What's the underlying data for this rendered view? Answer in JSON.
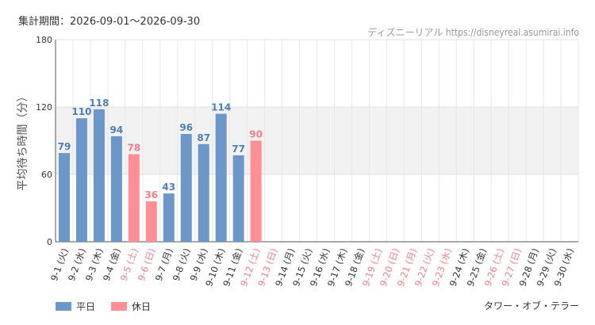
{
  "header": {
    "period": "集計期間：2026-09-01～2026-09-30",
    "source": "ディズニーリアル https://disneyreal.asumirai.info"
  },
  "footer": {
    "attraction": "タワー・オブ・テラー"
  },
  "colors": {
    "weekday": "#6b97c9",
    "holiday": "#ff8f94",
    "holiday_label": "#f27e85",
    "weekday_label": "#4d7fb8",
    "band": "#f2f2f2"
  },
  "chart_data": {
    "type": "bar",
    "ylabel": "平均待ち時間（分）",
    "ylim": [
      0,
      180
    ],
    "yticks": [
      "0",
      "60",
      "120",
      "180"
    ],
    "shaded_band": [
      60,
      120
    ],
    "grid": true,
    "legend_position": "bottom-left",
    "legend": [
      {
        "name": "平日",
        "kind": "weekday"
      },
      {
        "name": "休日",
        "kind": "holiday"
      }
    ],
    "categories": [
      "9-1 (火)",
      "9-2 (水)",
      "9-3 (木)",
      "9-4 (金)",
      "9-5 (土)",
      "9-6 (日)",
      "9-7 (月)",
      "9-8 (火)",
      "9-9 (水)",
      "9-10 (木)",
      "9-11 (金)",
      "9-12 (土)",
      "9-13 (日)",
      "9-14 (月)",
      "9-15 (火)",
      "9-16 (水)",
      "9-17 (木)",
      "9-18 (金)",
      "9-19 (土)",
      "9-20 (日)",
      "9-21 (月)",
      "9-22 (火)",
      "9-23 (水)",
      "9-24 (木)",
      "9-25 (金)",
      "9-26 (土)",
      "9-27 (日)",
      "9-28 (月)",
      "9-29 (火)",
      "9-30 (水)"
    ],
    "holiday": [
      false,
      false,
      false,
      false,
      true,
      true,
      false,
      false,
      false,
      false,
      false,
      true,
      true,
      false,
      false,
      false,
      false,
      false,
      true,
      true,
      true,
      true,
      true,
      false,
      false,
      true,
      true,
      false,
      false,
      false
    ],
    "values": [
      79,
      110,
      118,
      94,
      78,
      36,
      43,
      96,
      87,
      114,
      77,
      90,
      null,
      null,
      null,
      null,
      null,
      null,
      null,
      null,
      null,
      null,
      null,
      null,
      null,
      null,
      null,
      null,
      null,
      null
    ]
  }
}
